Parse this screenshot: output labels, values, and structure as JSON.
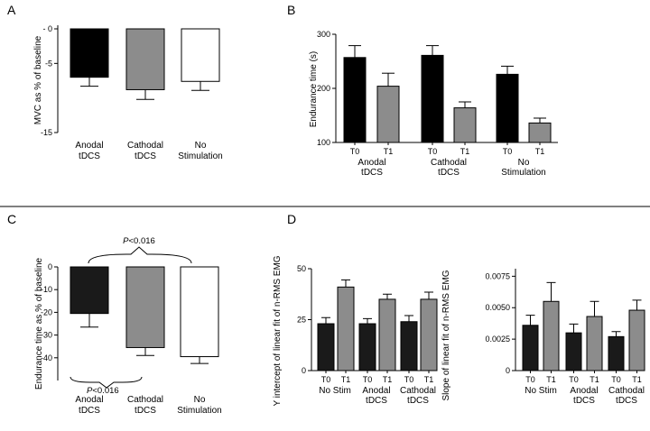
{
  "panels": {
    "A": {
      "letter": "A",
      "chart_data": {
        "type": "bar",
        "ylabel": "MVC as % of baseline",
        "ylim": [
          -15,
          0
        ],
        "yticks": [
          {
            "value": 0,
            "label": "- 0"
          },
          {
            "value": -5,
            "label": "-5"
          },
          {
            "value": -15,
            "label": "-15"
          }
        ],
        "categories": [
          [
            "Anodal",
            "tDCS"
          ],
          [
            "Cathodal",
            "tDCS"
          ],
          [
            "No",
            "Stimulation"
          ]
        ],
        "values": [
          -7.0,
          -8.8,
          -7.6
        ],
        "errors": [
          1.3,
          1.4,
          1.3
        ],
        "colors": [
          "#000000",
          "#8c8c8c",
          "#ffffff"
        ]
      }
    },
    "B": {
      "letter": "B",
      "chart_data": {
        "type": "bar",
        "ylabel": "Endurance time (s)",
        "ylim": [
          100,
          300
        ],
        "yticks": [
          100,
          200,
          300
        ],
        "tick_labels": [
          "T0",
          "T1",
          "T0",
          "T1",
          "T0",
          "T1"
        ],
        "groups": [
          [
            "Anodal",
            "tDCS"
          ],
          [
            "Cathodal",
            "tDCS"
          ],
          [
            "No",
            "Stimulation"
          ]
        ],
        "values": [
          257,
          204,
          261,
          164,
          226,
          136
        ],
        "errors": [
          22,
          24,
          18,
          11,
          15,
          9
        ],
        "colors": [
          "#000000",
          "#8c8c8c",
          "#000000",
          "#8c8c8c",
          "#000000",
          "#8c8c8c"
        ]
      }
    },
    "C": {
      "letter": "C",
      "chart_data": {
        "type": "bar",
        "ylabel": "Endurance time as % of baseline",
        "ylim": [
          -50,
          0
        ],
        "yticks": [
          0,
          -10,
          -20,
          -30,
          -40
        ],
        "categories": [
          [
            "Anodal",
            "tDCS"
          ],
          [
            "Cathodal",
            "tDCS"
          ],
          [
            "No",
            "Stimulation"
          ]
        ],
        "values": [
          -20.5,
          -35.5,
          -39.5
        ],
        "errors": [
          6,
          3.5,
          3
        ],
        "colors": [
          "#1a1a1a",
          "#8c8c8c",
          "#ffffff"
        ],
        "annotations": {
          "p_symbol": "P",
          "p_value": "<0.016"
        }
      }
    },
    "D": {
      "letter": "D",
      "charts": [
        {
          "chart_data": {
            "type": "bar",
            "ylabel": "Y intercept of linear fit of n-RMS EMG",
            "ylim": [
              0,
              50
            ],
            "yticks": [
              0,
              25,
              50
            ],
            "tick_labels": [
              "T0",
              "T1",
              "T0",
              "T1",
              "T0",
              "T1"
            ],
            "groups": [
              [
                "No Stim"
              ],
              [
                "Anodal",
                "tDCS"
              ],
              [
                "Cathodal",
                "tDCS"
              ]
            ],
            "values": [
              23,
              41,
              23,
              35,
              24,
              35
            ],
            "errors": [
              3,
              3.5,
              2.5,
              2.5,
              3,
              3.5
            ],
            "colors": [
              "#1a1a1a",
              "#8c8c8c",
              "#1a1a1a",
              "#8c8c8c",
              "#1a1a1a",
              "#8c8c8c"
            ]
          }
        },
        {
          "chart_data": {
            "type": "bar",
            "ylabel": "Slope of linear fit of n-RMS EMG",
            "ylim": [
              0,
              0.0081
            ],
            "yticks": [
              {
                "value": 0,
                "label": "0"
              },
              {
                "value": 0.0025,
                "label": "0.0025"
              },
              {
                "value": 0.005,
                "label": "0.0050"
              },
              {
                "value": 0.0075,
                "label": "0.0075"
              }
            ],
            "tick_labels": [
              "T0",
              "T1",
              "T0",
              "T1",
              "T0",
              "T1"
            ],
            "groups": [
              [
                "No Stim"
              ],
              [
                "Anodal",
                "tDCS"
              ],
              [
                "Cathodal",
                "tDCS"
              ]
            ],
            "values": [
              0.0036,
              0.0055,
              0.003,
              0.0043,
              0.0027,
              0.0048
            ],
            "errors": [
              0.0008,
              0.0015,
              0.0007,
              0.0012,
              0.0004,
              0.0008
            ],
            "colors": [
              "#1a1a1a",
              "#8c8c8c",
              "#1a1a1a",
              "#8c8c8c",
              "#1a1a1a",
              "#8c8c8c"
            ]
          }
        }
      ]
    }
  }
}
